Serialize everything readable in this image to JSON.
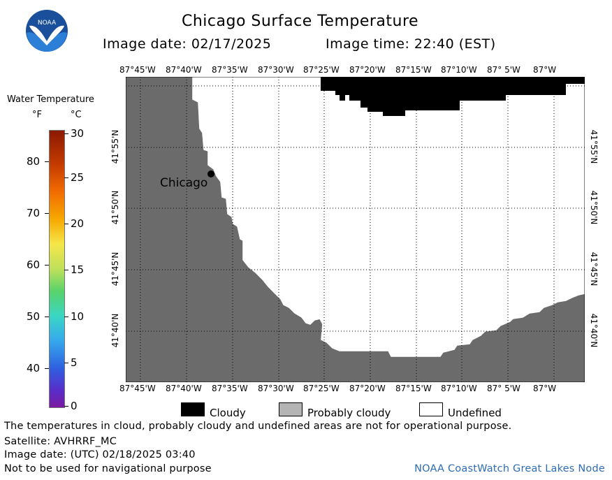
{
  "header": {
    "title": "Chicago Surface Temperature",
    "image_date_label": "Image date: 02/17/2025",
    "image_time_label": "Image time: 22:40 (EST)"
  },
  "colorbar": {
    "title": "Water Temperature",
    "unit_f": "°F",
    "unit_c": "°C",
    "f_ticks": [
      "80",
      "70",
      "60",
      "50",
      "40"
    ],
    "c_ticks": [
      "30",
      "25",
      "20",
      "15",
      "10",
      "5",
      "0"
    ]
  },
  "map": {
    "top_lon_labels": [
      "87°45'W",
      "87°40'W",
      "87°35'W",
      "87°30'W",
      "87°25'W",
      "87°20'W",
      "87°15'W",
      "87°10'W",
      "87° 5'W",
      "87°W"
    ],
    "bottom_lon_labels": [
      "87°45'W",
      "87°40'W",
      "87°35'W",
      "87°30'W",
      "87°25'W",
      "87°20'W",
      "87°15'W",
      "87°10'W",
      "87° 5'W",
      "87°W"
    ],
    "left_lat_labels": [
      "41°55'N",
      "41°50'N",
      "41°45'N",
      "41°40'N"
    ],
    "right_lat_labels": [
      "41°55'N",
      "41°50'N",
      "41°45'N",
      "41°40'N"
    ],
    "city_label": "Chicago",
    "colors": {
      "land": "#6b6b6b",
      "cloud": "#000000",
      "undefined": "#ffffff",
      "probably_cloudy": "#b4b4b4"
    }
  },
  "legend": {
    "cloudy": "Cloudy",
    "probably_cloudy": "Probably cloudy",
    "undefined": "Undefined"
  },
  "footer": {
    "disclaimer": "The temperatures in cloud, probably cloudy and undefined areas are not for operational purpose.",
    "satellite": "Satellite: AVHRRF_MC",
    "utc_date": "Image date: (UTC) 02/18/2025  03:40",
    "nav_warning": "Not to be used for navigational purpose",
    "credit": "NOAA CoastWatch Great Lakes Node"
  },
  "logo": {
    "text": "NOAA"
  }
}
